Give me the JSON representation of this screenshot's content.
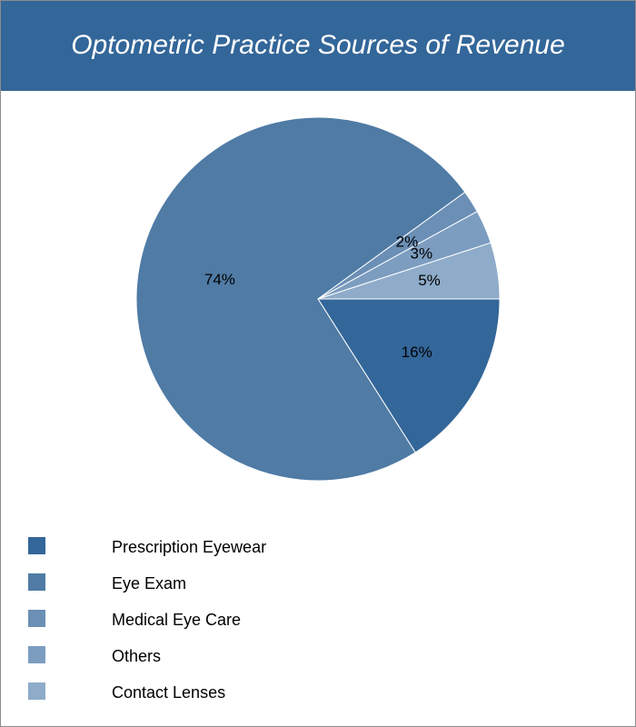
{
  "header": {
    "title": "Optometric Practice Sources of Revenue"
  },
  "chart_data": {
    "type": "pie",
    "title": "Optometric Practice Sources of Revenue",
    "slices": [
      {
        "name": "Prescription Eyewear",
        "value": 16,
        "label": "16%",
        "color": "#336699"
      },
      {
        "name": "Eye Exam",
        "value": 74,
        "label": "74%",
        "color": "#4f7ba5"
      },
      {
        "name": "Medical Eye Care",
        "value": 2,
        "label": "2%",
        "color": "#6b8fb5"
      },
      {
        "name": "Others",
        "value": 3,
        "label": "3%",
        "color": "#7c9dc0"
      },
      {
        "name": "Contact Lenses",
        "value": 5,
        "label": "5%",
        "color": "#8eabc9"
      }
    ],
    "legend_position": "bottom-left"
  },
  "legend": {
    "items": [
      {
        "label": "Prescription Eyewear",
        "color": "#336699"
      },
      {
        "label": "Eye Exam",
        "color": "#4f7ba5"
      },
      {
        "label": "Medical Eye Care",
        "color": "#6b8fb5"
      },
      {
        "label": "Others",
        "color": "#7c9dc0"
      },
      {
        "label": "Contact Lenses",
        "color": "#8eabc9"
      }
    ]
  }
}
